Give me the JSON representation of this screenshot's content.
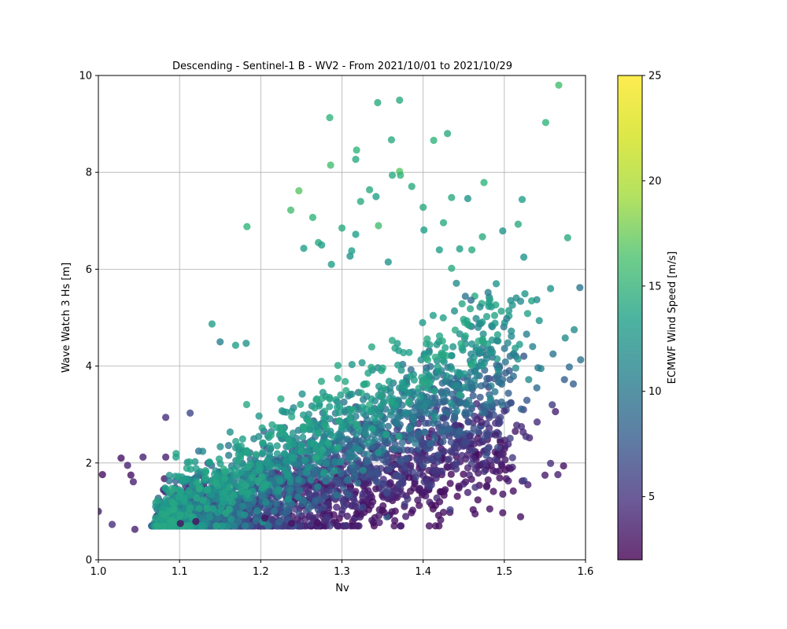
{
  "chart_data": {
    "type": "scatter",
    "title": "Descending - Sentinel-1 B - WV2 - From 2021/10/01 to 2021/10/29",
    "xlabel": "Nv",
    "ylabel": "Wave Watch 3 Hs [m]",
    "xlim": [
      1.0,
      1.6
    ],
    "ylim": [
      0,
      10
    ],
    "x_ticks": [
      "1.0",
      "1.1",
      "1.2",
      "1.3",
      "1.4",
      "1.5",
      "1.6"
    ],
    "y_ticks": [
      "0",
      "2",
      "4",
      "6",
      "8",
      "10"
    ],
    "grid": true,
    "colorbar": {
      "label": "ECMWF Wind Speed [m/s]",
      "range": [
        2,
        25
      ],
      "ticks": [
        "5",
        "10",
        "15",
        "20",
        "25"
      ],
      "colormap": "viridis",
      "alpha": 0.8
    },
    "points": [
      [
        1.567,
        9.8,
        18
      ],
      [
        1.551,
        9.03,
        17
      ],
      [
        1.371,
        9.49,
        16
      ],
      [
        1.344,
        9.44,
        16
      ],
      [
        1.285,
        9.13,
        17
      ],
      [
        1.361,
        8.67,
        16
      ],
      [
        1.413,
        8.66,
        17
      ],
      [
        1.43,
        8.8,
        16
      ],
      [
        1.318,
        8.46,
        17
      ],
      [
        1.317,
        8.27,
        16
      ],
      [
        1.286,
        8.15,
        18
      ],
      [
        1.371,
        8.02,
        19
      ],
      [
        1.372,
        7.94,
        17
      ],
      [
        1.362,
        7.94,
        16
      ],
      [
        1.475,
        7.79,
        17
      ],
      [
        1.386,
        7.71,
        16
      ],
      [
        1.247,
        7.62,
        19
      ],
      [
        1.334,
        7.64,
        16
      ],
      [
        1.342,
        7.5,
        15
      ],
      [
        1.455,
        7.46,
        14
      ],
      [
        1.435,
        7.48,
        16
      ],
      [
        1.522,
        7.44,
        15
      ],
      [
        1.323,
        7.4,
        16
      ],
      [
        1.264,
        7.07,
        17
      ],
      [
        1.237,
        7.22,
        18
      ],
      [
        1.4,
        7.28,
        16
      ],
      [
        1.183,
        6.88,
        17
      ],
      [
        1.317,
        6.72,
        15
      ],
      [
        1.345,
        6.9,
        18
      ],
      [
        1.425,
        6.96,
        16
      ],
      [
        1.473,
        6.67,
        16
      ],
      [
        1.517,
        6.93,
        16
      ],
      [
        1.578,
        6.65,
        16
      ],
      [
        1.498,
        6.79,
        14
      ],
      [
        1.3,
        6.85,
        16
      ],
      [
        1.271,
        6.55,
        16
      ],
      [
        1.253,
        6.43,
        15
      ],
      [
        1.31,
        6.27,
        14
      ],
      [
        1.312,
        6.38,
        15
      ],
      [
        1.42,
        6.4,
        15
      ],
      [
        1.445,
        6.42,
        15
      ],
      [
        1.46,
        6.4,
        16
      ],
      [
        1.524,
        6.25,
        14
      ],
      [
        1.357,
        6.15,
        14
      ],
      [
        1.287,
        6.1,
        15
      ],
      [
        1.435,
        6.02,
        16
      ],
      [
        1.401,
        6.81,
        15
      ],
      [
        1.275,
        6.5,
        15
      ],
      [
        1.593,
        5.62,
        11
      ],
      [
        1.557,
        5.6,
        14
      ],
      [
        1.52,
        5.34,
        13
      ],
      [
        1.49,
        5.7,
        14
      ],
      [
        1.51,
        5.26,
        14
      ],
      [
        1.54,
        5.37,
        13
      ],
      [
        1.48,
        5.52,
        12
      ],
      [
        1.459,
        5.36,
        10
      ],
      [
        1.452,
        5.44,
        11
      ],
      [
        1.47,
        5.22,
        13
      ],
      [
        1.503,
        4.98,
        12
      ],
      [
        1.543,
        4.94,
        14
      ],
      [
        1.575,
        4.58,
        13
      ],
      [
        1.586,
        4.75,
        13
      ],
      [
        1.56,
        4.25,
        11
      ],
      [
        1.594,
        4.13,
        11
      ],
      [
        1.58,
        3.98,
        10
      ],
      [
        1.545,
        3.95,
        12
      ],
      [
        1.53,
        3.72,
        13
      ],
      [
        1.514,
        3.96,
        13
      ],
      [
        1.498,
        3.72,
        10
      ],
      [
        1.477,
        3.62,
        9
      ],
      [
        1.505,
        3.44,
        9
      ],
      [
        1.54,
        3.55,
        10
      ],
      [
        1.574,
        3.72,
        9
      ],
      [
        1.585,
        3.63,
        9
      ],
      [
        1.559,
        3.2,
        6
      ],
      [
        1.563,
        3.06,
        4
      ],
      [
        1.521,
        2.75,
        5
      ],
      [
        1.5,
        3.07,
        5
      ],
      [
        1.489,
        2.58,
        4
      ],
      [
        1.472,
        2.84,
        4
      ],
      [
        1.457,
        2.55,
        5
      ],
      [
        1.44,
        2.78,
        5
      ],
      [
        1.425,
        2.92,
        6
      ],
      [
        1.495,
        2.43,
        3
      ],
      [
        1.47,
        1.95,
        4
      ],
      [
        1.455,
        1.9,
        4
      ],
      [
        1.48,
        1.65,
        3
      ],
      [
        1.51,
        1.91,
        4
      ],
      [
        1.511,
        1.42,
        3
      ],
      [
        1.529,
        1.55,
        4
      ],
      [
        1.557,
        1.99,
        5
      ],
      [
        1.566,
        1.76,
        4
      ],
      [
        1.573,
        1.94,
        3
      ],
      [
        1.497,
        1.95,
        3
      ],
      [
        1.482,
        1.05,
        3
      ],
      [
        1.464,
        0.95,
        3
      ],
      [
        1.498,
        0.97,
        3
      ],
      [
        1.52,
        0.89,
        3
      ],
      [
        1.425,
        0.98,
        3
      ],
      [
        1.455,
        1.39,
        4
      ],
      [
        1.4,
        1.74,
        4
      ],
      [
        1.383,
        1.7,
        3
      ],
      [
        1.365,
        0.81,
        3
      ],
      [
        1.352,
        0.98,
        3
      ],
      [
        1.338,
        1.2,
        3
      ],
      [
        1.318,
        0.95,
        3
      ],
      [
        1.29,
        0.93,
        3
      ],
      [
        1.27,
        0.76,
        3
      ],
      [
        1.238,
        0.75,
        3
      ],
      [
        1.205,
        0.86,
        3
      ],
      [
        1.12,
        0.79,
        3
      ],
      [
        1.101,
        0.75,
        3
      ],
      [
        1.045,
        0.63,
        4
      ],
      [
        1.017,
        0.73,
        5
      ],
      [
        1.0,
        1.0,
        4
      ],
      [
        1.005,
        1.76,
        3
      ],
      [
        1.028,
        2.1,
        3
      ],
      [
        1.036,
        1.95,
        4
      ],
      [
        1.04,
        1.75,
        3
      ],
      [
        1.043,
        1.61,
        4
      ],
      [
        1.055,
        2.12,
        4
      ],
      [
        1.083,
        2.12,
        4
      ],
      [
        1.083,
        2.94,
        5
      ],
      [
        1.113,
        3.03,
        7
      ],
      [
        1.15,
        4.5,
        12
      ],
      [
        1.14,
        4.87,
        15
      ],
      [
        1.169,
        4.43,
        15
      ],
      [
        1.182,
        4.47,
        14
      ]
    ]
  }
}
